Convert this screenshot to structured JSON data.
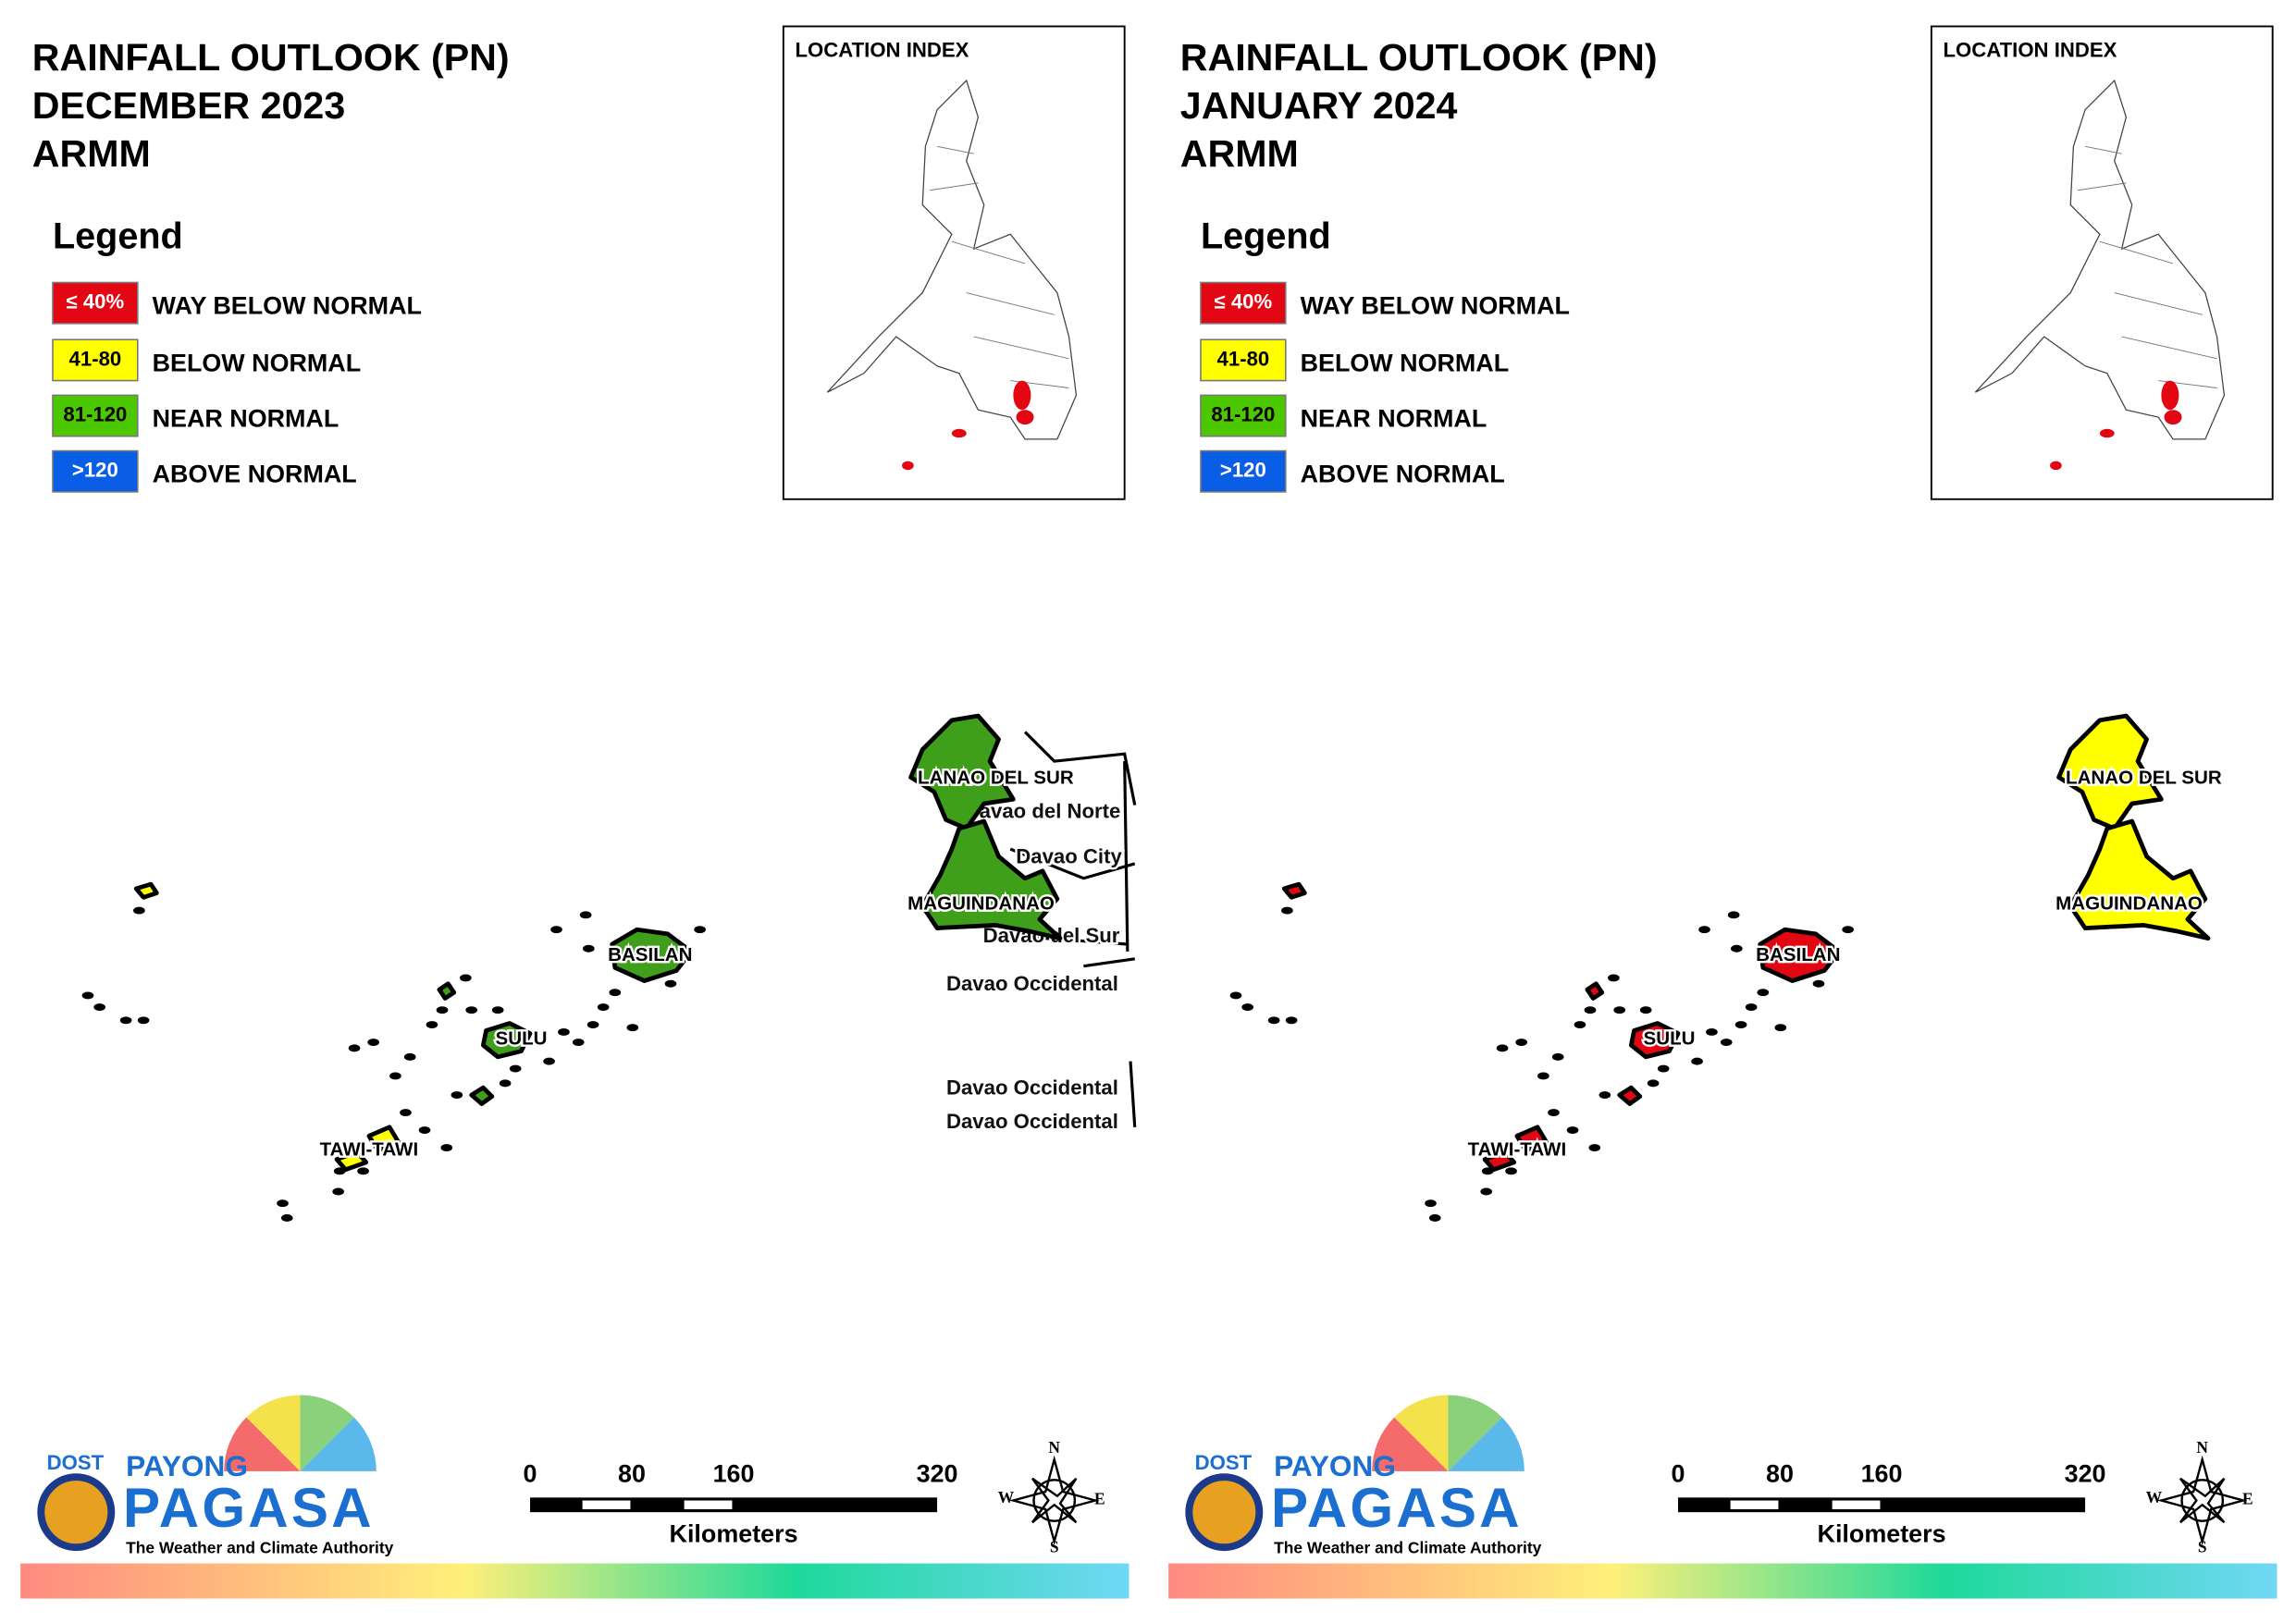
{
  "panels": [
    {
      "title": [
        "RAINFALL OUTLOOK (PN)",
        "DECEMBER 2023",
        "ARMM"
      ],
      "legend": {
        "title": "Legend",
        "items": [
          {
            "range": "≤ 40%",
            "label": "WAY BELOW NORMAL",
            "color": "#e30613"
          },
          {
            "range": "41-80",
            "label": "BELOW NORMAL",
            "color": "#ffff00"
          },
          {
            "range": "81-120",
            "label": "NEAR NORMAL",
            "color": "#4cc800"
          },
          {
            "range": ">120",
            "label": "ABOVE NORMAL",
            "color": "#0a5ee6"
          }
        ]
      },
      "location_index": "LOCATION INDEX",
      "regions": [
        {
          "name": "LANAO DEL SUR",
          "color": "#3f9e1a"
        },
        {
          "name": "MAGUINDANAO",
          "color": "#3f9e1a"
        },
        {
          "name": "BASILAN",
          "color": "#3f9e1a"
        },
        {
          "name": "SULU",
          "color": "#3f9e1a"
        },
        {
          "name": "TAWI-TAWI",
          "color": "#ffff00"
        }
      ],
      "other_labels": [
        "Davao del Norte",
        "Davao City",
        "Davao del Sur",
        "Davao Occidental",
        "Davao Occidental",
        "Davao Occidental"
      ],
      "logo": {
        "agency": "DOST",
        "brand": [
          "PAYONG",
          "PAGASA"
        ],
        "tagline": "The Weather and Climate Authority"
      },
      "scale": {
        "ticks": [
          0,
          80,
          160,
          320
        ],
        "unit": "Kilometers"
      },
      "compass": [
        "N",
        "E",
        "S",
        "W"
      ]
    },
    {
      "title": [
        "RAINFALL OUTLOOK (PN)",
        "JANUARY 2024",
        "ARMM"
      ],
      "legend": {
        "title": "Legend",
        "items": [
          {
            "range": "≤ 40%",
            "label": "WAY BELOW NORMAL",
            "color": "#e30613"
          },
          {
            "range": "41-80",
            "label": "BELOW NORMAL",
            "color": "#ffff00"
          },
          {
            "range": "81-120",
            "label": "NEAR NORMAL",
            "color": "#4cc800"
          },
          {
            "range": ">120",
            "label": "ABOVE NORMAL",
            "color": "#0a5ee6"
          }
        ]
      },
      "location_index": "LOCATION INDEX",
      "regions": [
        {
          "name": "LANAO DEL SUR",
          "color": "#ffff00"
        },
        {
          "name": "MAGUINDANAO",
          "color": "#ffff00"
        },
        {
          "name": "BASILAN",
          "color": "#e30613"
        },
        {
          "name": "SULU",
          "color": "#e30613"
        },
        {
          "name": "TAWI-TAWI",
          "color": "#e30613"
        }
      ],
      "other_labels": [],
      "logo": {
        "agency": "DOST",
        "brand": [
          "PAYONG",
          "PAGASA"
        ],
        "tagline": "The Weather and Climate Authority"
      },
      "scale": {
        "ticks": [
          0,
          80,
          160,
          320
        ],
        "unit": "Kilometers"
      },
      "compass": [
        "N",
        "E",
        "S",
        "W"
      ]
    }
  ]
}
